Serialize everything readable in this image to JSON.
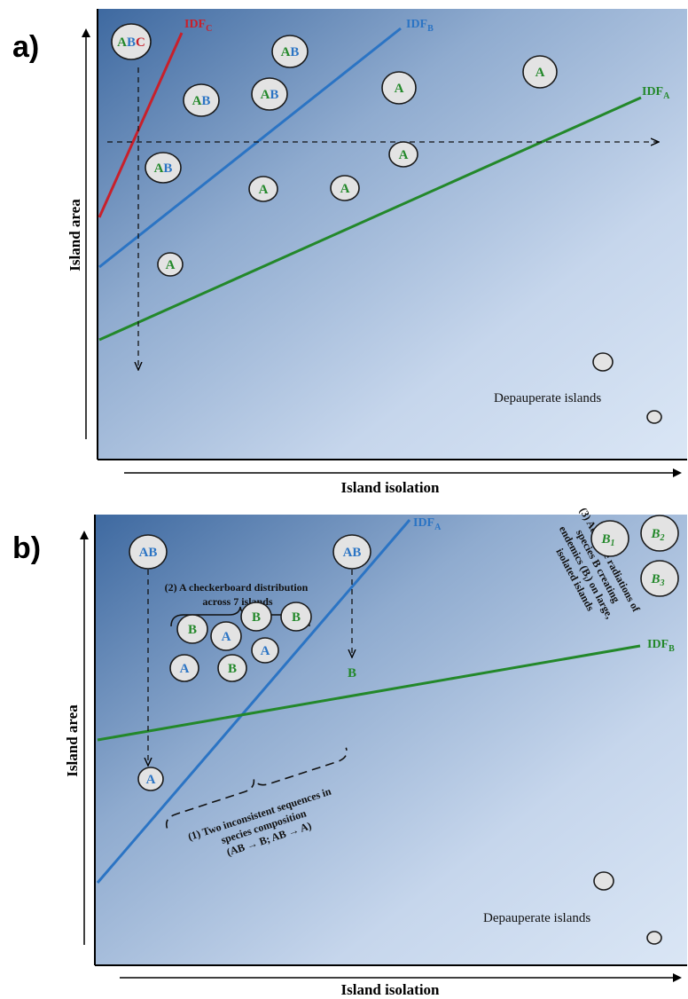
{
  "colors": {
    "species_a": "#2e8b2e",
    "species_b": "#2b74c4",
    "species_c": "#c8202b",
    "panel_dark": "#3f6aa0",
    "panel_light": "#d7e4f4"
  },
  "panel_a": {
    "label": "a)",
    "y_axis_title": "Island area",
    "x_axis_title": "Island isolation",
    "line_labels": {
      "idf_c": {
        "main": "IDF",
        "sub": "C"
      },
      "idf_b": {
        "main": "IDF",
        "sub": "B"
      },
      "idf_a": {
        "main": "IDF",
        "sub": "A"
      }
    },
    "islands": {
      "abc": [
        "A",
        "B",
        "C"
      ],
      "ab": "AB",
      "a": "A"
    },
    "depauperate_label": "Depauperate islands"
  },
  "panel_b": {
    "label": "b)",
    "y_axis_title": "Island area",
    "x_axis_title": "Island isolation",
    "line_labels": {
      "idf_a": {
        "main": "IDF",
        "sub": "A"
      },
      "idf_b": {
        "main": "IDF",
        "sub": "B"
      }
    },
    "islands": {
      "ab": "AB",
      "a": "A",
      "b": "B",
      "b1": {
        "main": "B",
        "sub": "1"
      },
      "b2": {
        "main": "B",
        "sub": "2"
      },
      "b3": {
        "main": "B",
        "sub": "3"
      }
    },
    "checkerboard_note": [
      "(2) A checkerboard distribution",
      "across 7 islands"
    ],
    "sequence_note": [
      "(1)  Two inconsistent sequences in",
      "species composition",
      "(AB → B; AB → A)"
    ],
    "radiation_note": [
      "(3) Adaptive radiations of",
      "species B creating",
      "endemics (B",
      "i",
      ") on large,",
      "isolated islands"
    ],
    "depauperate_label": "Depauperate islands"
  }
}
